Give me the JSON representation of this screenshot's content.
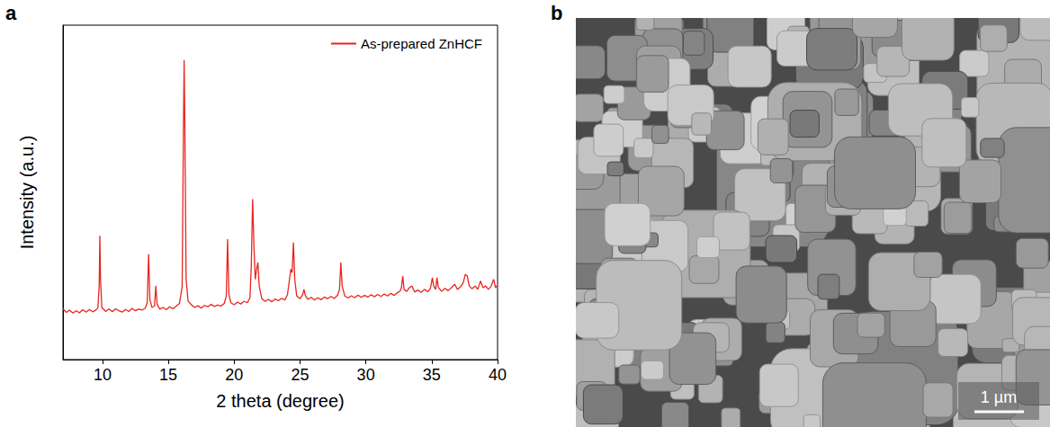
{
  "chart_data": {
    "type": "line",
    "panel_label": "a",
    "xlabel": "2 theta (degree)",
    "ylabel": "Intensity (a.u.)",
    "x": [
      7.0,
      7.25,
      7.5,
      7.75,
      8.0,
      8.25,
      8.5,
      8.75,
      9.0,
      9.25,
      9.5,
      9.65,
      9.75,
      9.8,
      9.85,
      9.95,
      10.25,
      10.5,
      10.75,
      11.0,
      11.25,
      11.5,
      11.75,
      12.0,
      12.25,
      12.5,
      12.75,
      13.0,
      13.25,
      13.4,
      13.5,
      13.6,
      13.75,
      13.95,
      14.05,
      14.15,
      14.35,
      14.6,
      14.85,
      15.1,
      15.35,
      15.6,
      15.85,
      16.05,
      16.15,
      16.2,
      16.25,
      16.35,
      16.5,
      16.75,
      17.0,
      17.25,
      17.5,
      17.75,
      18.0,
      18.25,
      18.5,
      18.75,
      19.0,
      19.25,
      19.4,
      19.5,
      19.6,
      19.75,
      20.0,
      20.25,
      20.5,
      20.75,
      21.0,
      21.2,
      21.3,
      21.4,
      21.5,
      21.6,
      21.7,
      21.8,
      21.9,
      22.1,
      22.35,
      22.6,
      22.85,
      23.1,
      23.35,
      23.6,
      23.85,
      24.05,
      24.2,
      24.3,
      24.4,
      24.5,
      24.6,
      24.75,
      25.0,
      25.2,
      25.3,
      25.4,
      25.6,
      25.85,
      26.1,
      26.35,
      26.6,
      26.85,
      27.1,
      27.35,
      27.6,
      27.85,
      28.0,
      28.1,
      28.2,
      28.4,
      28.65,
      28.9,
      29.15,
      29.4,
      29.65,
      29.9,
      30.15,
      30.4,
      30.65,
      30.9,
      31.15,
      31.4,
      31.65,
      31.9,
      32.15,
      32.4,
      32.6,
      32.7,
      32.8,
      32.9,
      33.1,
      33.3,
      33.5,
      33.7,
      33.95,
      34.2,
      34.45,
      34.7,
      34.9,
      35.05,
      35.15,
      35.3,
      35.4,
      35.5,
      35.75,
      36.0,
      36.25,
      36.5,
      36.75,
      36.95,
      37.2,
      37.4,
      37.55,
      37.7,
      37.85,
      38.05,
      38.3,
      38.5,
      38.7,
      38.9,
      39.1,
      39.3,
      39.5,
      39.7,
      39.85,
      40.0
    ],
    "series": [
      {
        "name": "As-prepared ZnHCF",
        "color": "#e8251f",
        "values": [
          15.2,
          14.1,
          14.8,
          13.9,
          14.6,
          14.0,
          14.9,
          14.2,
          15.0,
          14.3,
          14.8,
          15.5,
          22,
          37,
          24,
          15.6,
          14.4,
          15.1,
          14.3,
          15.2,
          14.6,
          14.2,
          15.0,
          14.4,
          15.3,
          14.6,
          15.1,
          14.8,
          15.4,
          17,
          31.5,
          18,
          15.6,
          16,
          22,
          16.5,
          15.1,
          15.6,
          14.9,
          15.8,
          15.2,
          16.0,
          16.8,
          22,
          70,
          89.5,
          72,
          24,
          17.5,
          16.4,
          15.6,
          16.1,
          15.4,
          16.2,
          15.8,
          16.5,
          15.9,
          16.3,
          16.0,
          16.8,
          19,
          36,
          19.5,
          17.0,
          16.4,
          17.2,
          16.6,
          17.4,
          17.0,
          18.5,
          28,
          48,
          34,
          24,
          27,
          29,
          22,
          18.2,
          17.4,
          18.0,
          17.3,
          18.1,
          17.6,
          18.3,
          17.8,
          19.5,
          24,
          27,
          26,
          35,
          24,
          19.0,
          18.2,
          19.4,
          21,
          19.2,
          18.0,
          18.6,
          17.8,
          18.5,
          17.9,
          18.7,
          18.2,
          18.9,
          18.3,
          19.2,
          21,
          29,
          22,
          19.0,
          18.4,
          19.1,
          18.5,
          19.3,
          18.6,
          19.2,
          18.7,
          19.4,
          18.8,
          19.5,
          18.9,
          19.6,
          19.0,
          19.8,
          19.2,
          20.0,
          20.5,
          21.5,
          25,
          21,
          20.4,
          21.5,
          22.0,
          20.2,
          20.8,
          20.1,
          21.0,
          20.3,
          21.2,
          24.5,
          22,
          21.0,
          24.5,
          21.6,
          20.4,
          21.3,
          20.6,
          21.5,
          22.5,
          21.0,
          21.8,
          23,
          25.5,
          25,
          22,
          21.2,
          22.0,
          21.0,
          23.5,
          21.5,
          22.0,
          21.0,
          21.8,
          24,
          21.5,
          22.3
        ]
      }
    ],
    "xlim": [
      7,
      40
    ],
    "xticks": [
      10,
      15,
      20,
      25,
      30,
      35,
      40
    ],
    "ylim": [
      0,
      100
    ],
    "tick_labels": "x",
    "grid": false,
    "legend": "upper right"
  },
  "image": {
    "panel_label": "b",
    "scale_bar": "1 µm"
  }
}
